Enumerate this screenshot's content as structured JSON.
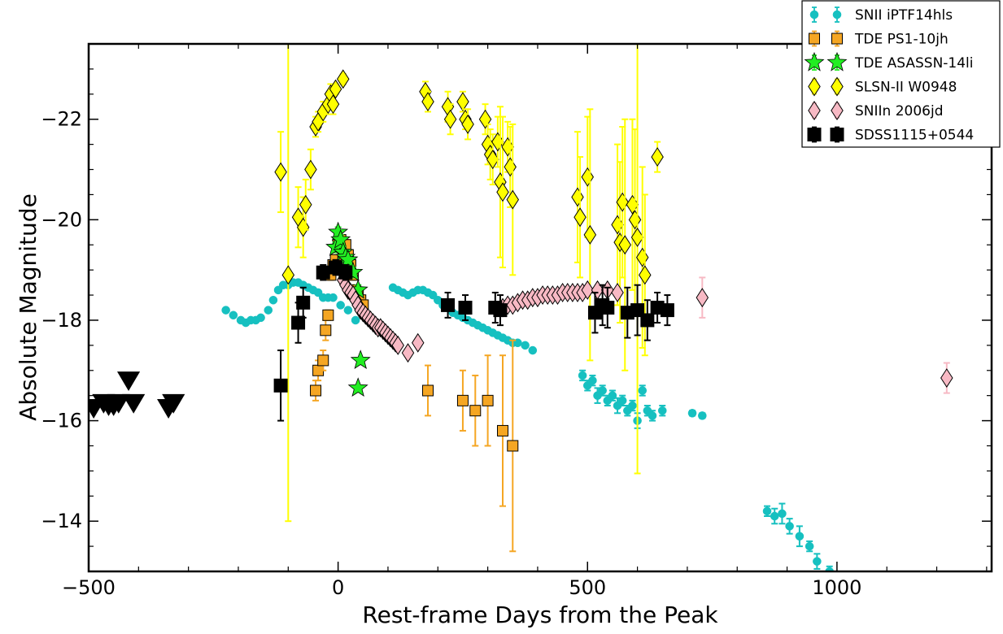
{
  "chart_data": {
    "type": "scatter",
    "xlabel": "Rest-frame Days from the Peak",
    "ylabel": "Absolute Magnitude",
    "xlim": [
      -500,
      1310
    ],
    "ylim": [
      -13,
      -23.5
    ],
    "y_inverted": true,
    "xticks": [
      -500,
      0,
      500,
      1000
    ],
    "xtick_labels": [
      "−500",
      "0",
      "500",
      "1000"
    ],
    "yticks": [
      -14,
      -16,
      -18,
      -20,
      -22
    ],
    "ytick_labels": [
      "−14",
      "−16",
      "−18",
      "−20",
      "−22"
    ],
    "grid": false,
    "legend_placement": "top-right",
    "series": [
      {
        "name": "SNII iPTF14hls",
        "marker": "circle",
        "color": "#16c0c0",
        "errcolor": "#16c0c0",
        "x": [
          -225,
          -210,
          -195,
          -185,
          -175,
          -165,
          -155,
          -140,
          -130,
          -120,
          -110,
          -100,
          -90,
          -80,
          -70,
          -60,
          -50,
          -40,
          -30,
          -20,
          -10,
          5,
          20,
          35,
          110,
          120,
          130,
          140,
          150,
          160,
          170,
          180,
          190,
          200,
          210,
          220,
          230,
          240,
          250,
          260,
          270,
          280,
          290,
          300,
          310,
          320,
          330,
          340,
          350,
          360,
          375,
          390,
          490,
          500,
          510,
          520,
          530,
          540,
          550,
          560,
          570,
          580,
          590,
          600,
          610,
          620,
          630,
          650,
          710,
          730,
          860,
          875,
          890,
          905,
          925,
          945,
          960,
          985
        ],
        "y": [
          -18.2,
          -18.1,
          -18.0,
          -17.95,
          -18.0,
          -18.0,
          -18.05,
          -18.2,
          -18.4,
          -18.6,
          -18.7,
          -18.7,
          -18.75,
          -18.75,
          -18.7,
          -18.65,
          -18.6,
          -18.55,
          -18.45,
          -18.45,
          -18.45,
          -18.3,
          -18.2,
          -18.0,
          -18.65,
          -18.6,
          -18.55,
          -18.5,
          -18.55,
          -18.6,
          -18.6,
          -18.55,
          -18.5,
          -18.4,
          -18.3,
          -18.25,
          -18.15,
          -18.1,
          -18.05,
          -18.0,
          -17.95,
          -17.9,
          -17.85,
          -17.8,
          -17.75,
          -17.7,
          -17.65,
          -17.6,
          -17.55,
          -17.55,
          -17.5,
          -17.4,
          -16.9,
          -16.7,
          -16.8,
          -16.5,
          -16.6,
          -16.4,
          -16.5,
          -16.3,
          -16.4,
          -16.2,
          -16.3,
          -16.0,
          -16.6,
          -16.2,
          -16.1,
          -16.2,
          -16.15,
          -16.1,
          -14.2,
          -14.1,
          -14.15,
          -13.9,
          -13.7,
          -13.5,
          -13.2,
          -13.0
        ],
        "err": [
          0,
          0,
          0,
          0,
          0,
          0,
          0,
          0,
          0,
          0,
          0,
          0,
          0,
          0,
          0,
          0,
          0,
          0,
          0,
          0,
          0,
          0,
          0,
          0,
          0,
          0,
          0,
          0,
          0,
          0,
          0,
          0,
          0,
          0,
          0,
          0,
          0,
          0,
          0,
          0,
          0,
          0,
          0,
          0,
          0,
          0,
          0,
          0,
          0,
          0,
          0,
          0,
          0.1,
          0.1,
          0.1,
          0.15,
          0.1,
          0.1,
          0.1,
          0.15,
          0.1,
          0.1,
          0.1,
          0.15,
          0.1,
          0.1,
          0.1,
          0.1,
          0.05,
          0.05,
          0.1,
          0.15,
          0.2,
          0.15,
          0.2,
          0.1,
          0.15,
          0.1
        ]
      },
      {
        "name": "TDE PS1-10jh",
        "marker": "square",
        "color": "#f5a623",
        "errcolor": "#f5a623",
        "x": [
          -45,
          -40,
          -30,
          -25,
          -20,
          -15,
          -10,
          -5,
          0,
          5,
          10,
          15,
          20,
          25,
          30,
          35,
          40,
          45,
          50,
          180,
          250,
          275,
          300,
          330,
          350
        ],
        "y": [
          -16.6,
          -17.0,
          -17.2,
          -17.8,
          -18.1,
          -18.9,
          -19.1,
          -19.2,
          -19.5,
          -19.6,
          -19.3,
          -19.5,
          -19.3,
          -19.1,
          -18.9,
          -18.6,
          -18.5,
          -18.4,
          -18.3,
          -16.6,
          -16.4,
          -16.2,
          -16.4,
          -15.8,
          -15.5
        ],
        "err": [
          0.2,
          0.2,
          0.2,
          0.2,
          0.1,
          0.1,
          0.1,
          0.1,
          0.1,
          0.1,
          0.1,
          0.1,
          0.1,
          0.1,
          0.1,
          0.1,
          0.1,
          0.1,
          0.1,
          0.5,
          0.6,
          0.7,
          0.9,
          1.5,
          2.1
        ]
      },
      {
        "name": "TDE ASASSN-14li",
        "marker": "star",
        "color": "#22ee22",
        "errcolor": "#22ee22",
        "x": [
          -5,
          0,
          5,
          10,
          15,
          20,
          30,
          40,
          45,
          40
        ],
        "y": [
          -19.45,
          -19.75,
          -19.6,
          -19.35,
          -19.25,
          -19.2,
          -18.95,
          -18.6,
          -17.2,
          -16.65
        ],
        "err": [
          0.1,
          0.1,
          0.1,
          0.1,
          0.1,
          0.1,
          0.1,
          0.1,
          0.05,
          0.05
        ]
      },
      {
        "name": "SLSN-II W0948",
        "marker": "diamond",
        "color": "#ffff00",
        "errcolor": "#ffff00",
        "x": [
          -115,
          -100,
          -80,
          -70,
          -65,
          -55,
          -45,
          -40,
          -30,
          -20,
          -15,
          -10,
          -5,
          10,
          175,
          180,
          220,
          225,
          250,
          255,
          260,
          295,
          300,
          305,
          310,
          320,
          325,
          330,
          340,
          345,
          350,
          480,
          485,
          500,
          505,
          560,
          565,
          570,
          575,
          590,
          595,
          600,
          610,
          615,
          640
        ],
        "y": [
          -20.95,
          -18.9,
          -20.05,
          -19.85,
          -20.3,
          -21.0,
          -21.85,
          -21.95,
          -22.15,
          -22.3,
          -22.5,
          -22.3,
          -22.6,
          -22.8,
          -22.55,
          -22.35,
          -22.25,
          -22.0,
          -22.35,
          -22.0,
          -21.9,
          -22.0,
          -21.5,
          -21.3,
          -21.2,
          -21.55,
          -20.75,
          -20.55,
          -21.45,
          -21.05,
          -20.4,
          -20.45,
          -20.05,
          -20.85,
          -19.7,
          -19.9,
          -19.55,
          -20.35,
          -19.5,
          -20.3,
          -20.0,
          -19.65,
          -19.25,
          -18.9,
          -21.25
        ],
        "err": [
          0.8,
          4.9,
          0.6,
          0.6,
          0.5,
          0.4,
          0.2,
          0.2,
          0.2,
          0.2,
          0.2,
          0.2,
          0.1,
          0.1,
          0.2,
          0.2,
          0.3,
          0.3,
          0.2,
          0.2,
          0.3,
          0.3,
          0.4,
          0.5,
          0.5,
          0.5,
          1.5,
          1.5,
          0.5,
          0.8,
          1.5,
          1.3,
          1.2,
          1.2,
          2.5,
          1.6,
          1.6,
          1.5,
          2.5,
          1.7,
          1.8,
          4.7,
          1.8,
          1.6,
          0.3
        ]
      },
      {
        "name": "SNIIn 2006jd",
        "marker": "diamond",
        "color": "#f7b9c4",
        "errcolor": "#f7b9c4",
        "x": [
          10,
          15,
          20,
          25,
          30,
          35,
          40,
          45,
          50,
          55,
          60,
          65,
          70,
          75,
          80,
          85,
          90,
          95,
          100,
          105,
          110,
          115,
          120,
          140,
          160,
          330,
          340,
          350,
          360,
          370,
          380,
          390,
          400,
          410,
          420,
          430,
          440,
          450,
          460,
          470,
          480,
          490,
          500,
          520,
          540,
          560,
          730,
          1220
        ],
        "y": [
          -18.8,
          -18.7,
          -18.6,
          -18.55,
          -18.5,
          -18.4,
          -18.3,
          -18.2,
          -18.15,
          -18.1,
          -18.05,
          -18.0,
          -17.95,
          -17.9,
          -17.85,
          -17.85,
          -17.8,
          -17.75,
          -17.7,
          -17.65,
          -17.6,
          -17.55,
          -17.5,
          -17.35,
          -17.55,
          -18.25,
          -18.3,
          -18.3,
          -18.35,
          -18.4,
          -18.4,
          -18.45,
          -18.45,
          -18.5,
          -18.5,
          -18.5,
          -18.5,
          -18.55,
          -18.55,
          -18.55,
          -18.55,
          -18.55,
          -18.6,
          -18.6,
          -18.6,
          -18.55,
          -18.45,
          -16.85
        ],
        "err": [
          0,
          0,
          0,
          0,
          0,
          0,
          0,
          0,
          0,
          0,
          0,
          0,
          0,
          0,
          0,
          0,
          0,
          0,
          0,
          0,
          0,
          0,
          0,
          0,
          0,
          0,
          0,
          0,
          0,
          0,
          0,
          0,
          0,
          0,
          0,
          0,
          0,
          0,
          0,
          0,
          0,
          0,
          0,
          0,
          0,
          0,
          0.4,
          0.3
        ]
      },
      {
        "name": "SDSS1115+0544",
        "marker": "square",
        "color": "#000000",
        "errcolor": "#000000",
        "x": [
          -115,
          -80,
          -70,
          -30,
          -5,
          15,
          220,
          255,
          315,
          325,
          515,
          530,
          540,
          580,
          600,
          620,
          640,
          660
        ],
        "y": [
          -16.7,
          -17.95,
          -18.35,
          -18.95,
          -19.05,
          -18.95,
          -18.3,
          -18.25,
          -18.25,
          -18.2,
          -18.15,
          -18.3,
          -18.25,
          -18.15,
          -18.2,
          -18.0,
          -18.25,
          -18.2
        ],
        "err": [
          0.7,
          0.4,
          0.3,
          0.15,
          0.15,
          0.15,
          0.25,
          0.25,
          0.3,
          0.3,
          0.4,
          0.4,
          0.4,
          0.5,
          0.5,
          0.4,
          0.3,
          0.3
        ]
      }
    ],
    "upper_limits": {
      "marker": "triangle-down",
      "color": "#000000",
      "x": [
        -490,
        -470,
        -460,
        -450,
        -440,
        -420,
        -410,
        -340,
        -330
      ],
      "y": [
        -16.25,
        -16.35,
        -16.3,
        -16.3,
        -16.35,
        -16.8,
        -16.35,
        -16.25,
        -16.35
      ]
    }
  }
}
